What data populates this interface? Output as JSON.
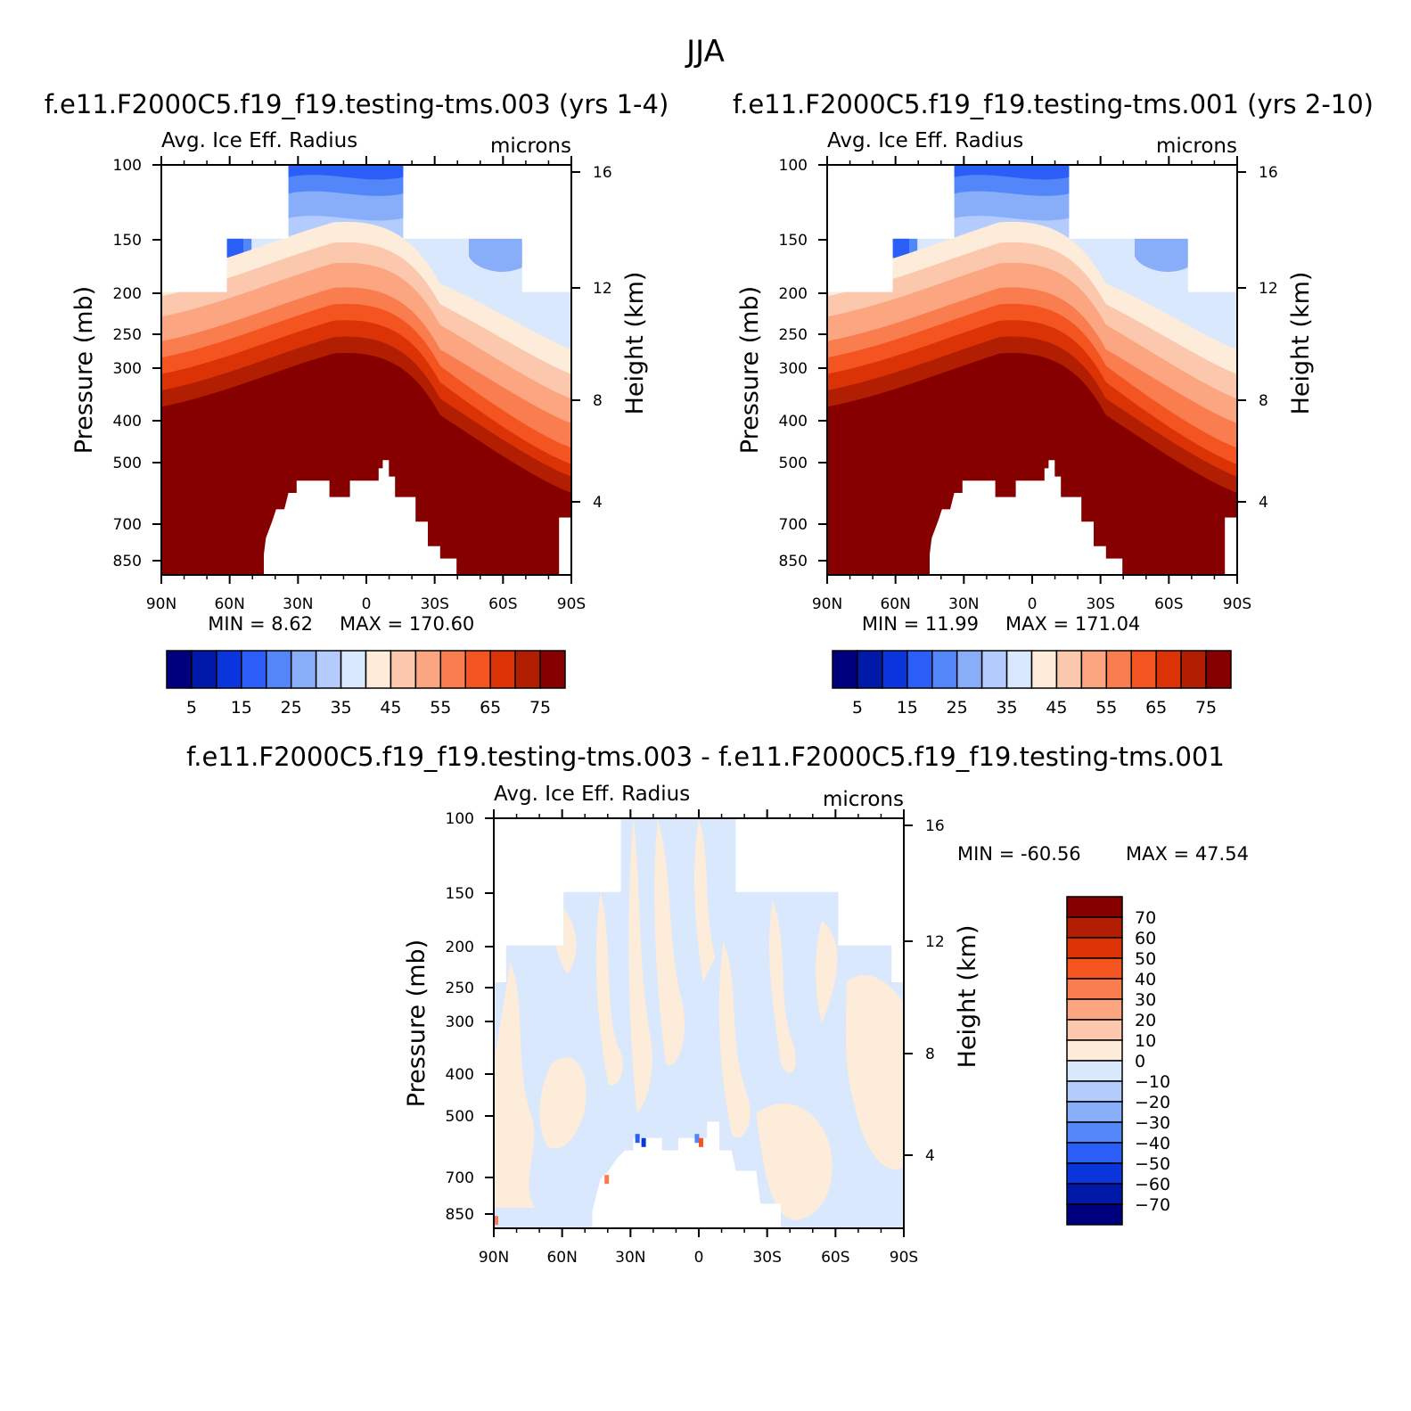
{
  "title": "JJA",
  "panels": [
    {
      "title": "f.e11.F2000C5.f19_f19.testing-tms.003 (yrs 1-4)",
      "variable": "Avg. Ice Eff. Radius",
      "units": "microns",
      "ylabel": "Pressure (mb)",
      "y2label": "Height (km)",
      "min_text": "MIN =    8.62",
      "max_text": "MAX = 170.60"
    },
    {
      "title": "f.e11.F2000C5.f19_f19.testing-tms.001 (yrs 2-10)",
      "variable": "Avg. Ice Eff. Radius",
      "units": "microns",
      "ylabel": "Pressure (mb)",
      "y2label": "Height (km)",
      "min_text": "MIN =   11.99",
      "max_text": "MAX = 171.04"
    },
    {
      "title": "f.e11.F2000C5.f19_f19.testing-tms.003 - f.e11.F2000C5.f19_f19.testing-tms.001",
      "variable": "Avg. Ice Eff. Radius",
      "units": "microns",
      "ylabel": "Pressure (mb)",
      "y2label": "Height (km)",
      "min_text": "MIN = -60.56",
      "max_text": "MAX =   47.54"
    }
  ],
  "chart_data": [
    {
      "type": "heatmap",
      "subtype": "filled contour, latitude-pressure cross section",
      "title": "f.e11.F2000C5.f19_f19.testing-tms.003 (yrs 1-4)",
      "xlabel": "",
      "ylabel": "Pressure (mb)",
      "y2label": "Height (km)",
      "x_ticks": [
        "90N",
        "60N",
        "30N",
        "0",
        "30S",
        "60S",
        "90S"
      ],
      "y_ticks": [
        100,
        150,
        200,
        250,
        300,
        400,
        500,
        700,
        850
      ],
      "y2_ticks": [
        16,
        12,
        8,
        4
      ],
      "y_log_scale": true,
      "ylim": [
        880,
        100
      ],
      "min": 8.62,
      "max": 170.6,
      "colorbar_labels": [
        "5",
        "15",
        "25",
        "35",
        "45",
        "55",
        "65",
        "75"
      ],
      "colorbar_orientation": "horizontal",
      "levels": [
        0,
        5,
        10,
        15,
        20,
        25,
        30,
        35,
        40,
        45,
        50,
        55,
        60,
        65,
        70,
        75
      ],
      "colors": [
        "#00007f",
        "#0019a8",
        "#0a35dc",
        "#2b5ef6",
        "#5386f8",
        "#88aefa",
        "#b3ccfd",
        "#d9e8fd",
        "#fdecd9",
        "#fcc8ad",
        "#fba680",
        "#fa7d4f",
        "#f45420",
        "#dc3306",
        "#b21e02",
        "#860000"
      ]
    },
    {
      "type": "heatmap",
      "subtype": "filled contour, latitude-pressure cross section",
      "title": "f.e11.F2000C5.f19_f19.testing-tms.001 (yrs 2-10)",
      "xlabel": "",
      "ylabel": "Pressure (mb)",
      "y2label": "Height (km)",
      "x_ticks": [
        "90N",
        "60N",
        "30N",
        "0",
        "30S",
        "60S",
        "90S"
      ],
      "y_ticks": [
        100,
        150,
        200,
        250,
        300,
        400,
        500,
        700,
        850
      ],
      "y2_ticks": [
        16,
        12,
        8,
        4
      ],
      "y_log_scale": true,
      "ylim": [
        880,
        100
      ],
      "min": 11.99,
      "max": 171.04,
      "colorbar_labels": [
        "5",
        "15",
        "25",
        "35",
        "45",
        "55",
        "65",
        "75"
      ],
      "colorbar_orientation": "horizontal",
      "levels": [
        0,
        5,
        10,
        15,
        20,
        25,
        30,
        35,
        40,
        45,
        50,
        55,
        60,
        65,
        70,
        75
      ],
      "colors": [
        "#00007f",
        "#0019a8",
        "#0a35dc",
        "#2b5ef6",
        "#5386f8",
        "#88aefa",
        "#b3ccfd",
        "#d9e8fd",
        "#fdecd9",
        "#fcc8ad",
        "#fba680",
        "#fa7d4f",
        "#f45420",
        "#dc3306",
        "#b21e02",
        "#860000"
      ]
    },
    {
      "type": "heatmap",
      "subtype": "filled contour difference, latitude-pressure cross section",
      "title": "f.e11.F2000C5.f19_f19.testing-tms.003 - f.e11.F2000C5.f19_f19.testing-tms.001",
      "xlabel": "",
      "ylabel": "Pressure (mb)",
      "y2label": "Height (km)",
      "x_ticks": [
        "90N",
        "60N",
        "30N",
        "0",
        "30S",
        "60S",
        "90S"
      ],
      "y_ticks": [
        100,
        150,
        200,
        250,
        300,
        400,
        500,
        700,
        850
      ],
      "y2_ticks": [
        16,
        12,
        8,
        4
      ],
      "y_log_scale": true,
      "ylim": [
        880,
        100
      ],
      "min": -60.56,
      "max": 47.54,
      "colorbar_labels": [
        "70",
        "60",
        "50",
        "40",
        "30",
        "20",
        "10",
        "0",
        "-10",
        "-20",
        "-30",
        "-40",
        "-50",
        "-60",
        "-70"
      ],
      "colorbar_orientation": "vertical",
      "colors": [
        "#860000",
        "#b21e02",
        "#dc3306",
        "#f45420",
        "#fa7d4f",
        "#fba680",
        "#fcc8ad",
        "#fdecd9",
        "#d9e8fd",
        "#b3ccfd",
        "#88aefa",
        "#5386f8",
        "#2b5ef6",
        "#0a35dc",
        "#0019a8",
        "#00007f"
      ]
    }
  ]
}
